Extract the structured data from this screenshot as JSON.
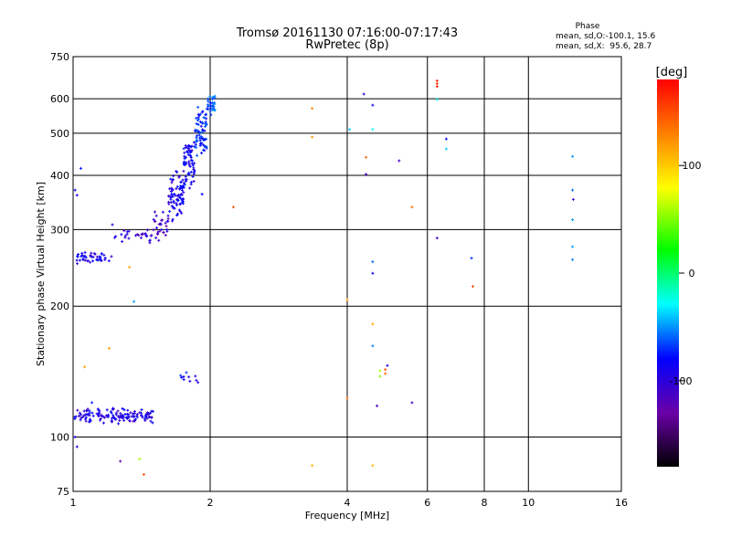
{
  "chart_data": {
    "type": "scatter",
    "title": "Tromsø 20161130 07:16:00-07:17:43",
    "subtitle": "RwPretec (8p)",
    "xlabel": "Frequency [MHz]",
    "ylabel": "Stationary phase Virtual Height [km]",
    "x_scale": "log",
    "y_scale": "log",
    "xlim": [
      1,
      16
    ],
    "ylim": [
      75,
      750
    ],
    "x_ticks": [
      1,
      2,
      4,
      6,
      8,
      10,
      16
    ],
    "y_ticks": [
      75,
      100,
      200,
      300,
      400,
      500,
      600,
      750
    ],
    "x_gridlines": [
      2,
      4,
      6,
      8,
      10
    ],
    "y_gridlines": [
      100,
      200,
      300,
      400,
      500,
      600
    ],
    "grid": true,
    "stats": {
      "heading": "Phase",
      "line_o": "mean, sd,O:-100.1, 15.6",
      "line_x": "mean, sd,X:  95.6, 28.7"
    },
    "colorbar": {
      "label": "[deg]",
      "ticks": [
        100,
        0,
        -100
      ],
      "range": [
        -180,
        180
      ],
      "colormap": "rainbow"
    },
    "clusters": [
      {
        "f_range": [
          1.0,
          1.22
        ],
        "h_center": 258,
        "h_spread": 10,
        "phase": -110,
        "n": 45
      },
      {
        "f_range": [
          1.22,
          1.55
        ],
        "h_center": 290,
        "h_spread": 12,
        "phase": -120,
        "n": 30
      },
      {
        "f_range": [
          1.5,
          1.62
        ],
        "h_center": 310,
        "h_spread": 25,
        "phase": -125,
        "n": 30
      },
      {
        "f_range": [
          1.62,
          1.75
        ],
        "h_center": 360,
        "h_spread": 55,
        "phase": -110,
        "n": 80
      },
      {
        "f_range": [
          1.75,
          1.85
        ],
        "h_center": 430,
        "h_spread": 65,
        "phase": -105,
        "n": 70
      },
      {
        "f_range": [
          1.85,
          1.97
        ],
        "h_center": 510,
        "h_spread": 70,
        "phase": -92,
        "n": 70
      },
      {
        "f_range": [
          1.97,
          2.05
        ],
        "h_center": 580,
        "h_spread": 40,
        "phase": -82,
        "n": 35
      },
      {
        "f_range": [
          1.0,
          1.5
        ],
        "h_center": 112,
        "h_spread": 5,
        "phase": -112,
        "n": 140
      },
      {
        "f_range": [
          1.7,
          1.9
        ],
        "h_center": 137,
        "h_spread": 5,
        "phase": -100,
        "n": 10
      }
    ],
    "points": [
      {
        "x": 1.01,
        "y": 370,
        "phase": -105
      },
      {
        "x": 1.02,
        "y": 360,
        "phase": -110
      },
      {
        "x": 1.04,
        "y": 415,
        "phase": -95
      },
      {
        "x": 1.02,
        "y": 95,
        "phase": -110
      },
      {
        "x": 1.01,
        "y": 100,
        "phase": -115
      },
      {
        "x": 1.22,
        "y": 308,
        "phase": -115
      },
      {
        "x": 1.33,
        "y": 246,
        "phase": 110
      },
      {
        "x": 1.36,
        "y": 205,
        "phase": -70
      },
      {
        "x": 1.2,
        "y": 160,
        "phase": 115
      },
      {
        "x": 1.06,
        "y": 145,
        "phase": 110
      },
      {
        "x": 1.1,
        "y": 120,
        "phase": -95
      },
      {
        "x": 1.27,
        "y": 88,
        "phase": -140
      },
      {
        "x": 1.4,
        "y": 89,
        "phase": 40
      },
      {
        "x": 1.43,
        "y": 82,
        "phase": 150
      },
      {
        "x": 1.92,
        "y": 362,
        "phase": -100
      },
      {
        "x": 2.25,
        "y": 338,
        "phase": 150
      },
      {
        "x": 3.35,
        "y": 570,
        "phase": 130
      },
      {
        "x": 3.35,
        "y": 490,
        "phase": 120
      },
      {
        "x": 3.35,
        "y": 86,
        "phase": 100
      },
      {
        "x": 4.0,
        "y": 207,
        "phase": 110
      },
      {
        "x": 4.0,
        "y": 123,
        "phase": 140
      },
      {
        "x": 4.05,
        "y": 510,
        "phase": -60
      },
      {
        "x": 4.35,
        "y": 615,
        "phase": -115
      },
      {
        "x": 4.4,
        "y": 440,
        "phase": 140
      },
      {
        "x": 4.4,
        "y": 402,
        "phase": -125
      },
      {
        "x": 4.55,
        "y": 580,
        "phase": -105
      },
      {
        "x": 4.55,
        "y": 510,
        "phase": -50
      },
      {
        "x": 4.55,
        "y": 253,
        "phase": -80
      },
      {
        "x": 4.55,
        "y": 238,
        "phase": -105
      },
      {
        "x": 4.55,
        "y": 182,
        "phase": 110
      },
      {
        "x": 4.55,
        "y": 162,
        "phase": -75
      },
      {
        "x": 4.55,
        "y": 86,
        "phase": 100
      },
      {
        "x": 4.65,
        "y": 118,
        "phase": -125
      },
      {
        "x": 4.72,
        "y": 138,
        "phase": 30
      },
      {
        "x": 4.72,
        "y": 142,
        "phase": 40
      },
      {
        "x": 4.85,
        "y": 143,
        "phase": 150
      },
      {
        "x": 4.85,
        "y": 140,
        "phase": 140
      },
      {
        "x": 4.9,
        "y": 146,
        "phase": -110
      },
      {
        "x": 5.2,
        "y": 432,
        "phase": -125
      },
      {
        "x": 5.55,
        "y": 338,
        "phase": 140
      },
      {
        "x": 5.55,
        "y": 120,
        "phase": -125
      },
      {
        "x": 6.3,
        "y": 660,
        "phase": 170
      },
      {
        "x": 6.3,
        "y": 650,
        "phase": 160
      },
      {
        "x": 6.3,
        "y": 640,
        "phase": 175
      },
      {
        "x": 6.3,
        "y": 598,
        "phase": -50
      },
      {
        "x": 6.3,
        "y": 287,
        "phase": -125
      },
      {
        "x": 6.6,
        "y": 485,
        "phase": -100
      },
      {
        "x": 6.6,
        "y": 460,
        "phase": -60
      },
      {
        "x": 7.5,
        "y": 258,
        "phase": -90
      },
      {
        "x": 7.55,
        "y": 222,
        "phase": 150
      },
      {
        "x": 12.5,
        "y": 442,
        "phase": -70
      },
      {
        "x": 12.5,
        "y": 370,
        "phase": -80
      },
      {
        "x": 12.55,
        "y": 352,
        "phase": -125
      },
      {
        "x": 12.5,
        "y": 316,
        "phase": -70
      },
      {
        "x": 12.5,
        "y": 274,
        "phase": -70
      },
      {
        "x": 12.5,
        "y": 256,
        "phase": -75
      }
    ]
  }
}
